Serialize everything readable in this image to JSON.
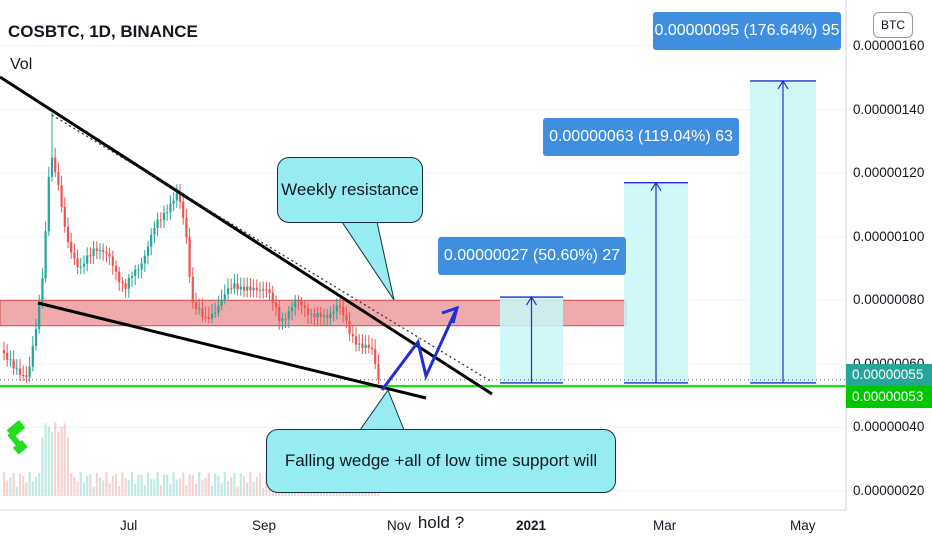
{
  "header": {
    "symbol": "COSBTC, 1D, BINANCE",
    "volume_label": "Vol",
    "currency": "BTC"
  },
  "annotations": {
    "resistance_note": "Weekly resistance",
    "wedge_note": "Falling wedge +all of low time support will hold ?"
  },
  "colors": {
    "support_line": "#22dd22",
    "resistance_zone": "#e57373",
    "target_box": "#c8f7f7",
    "label_bg": "#3f8ee0",
    "up_candle": "#26a69a",
    "down_candle": "#ef5350",
    "arrow": "#1f2fd6"
  },
  "chart_data": {
    "type": "candlestick",
    "title": "COSBTC, 1D, BINANCE",
    "x_ticks": [
      "Jul",
      "Sep",
      "Nov",
      "2021",
      "Mar",
      "May"
    ],
    "y_ticks": [
      "0.00000160",
      "0.00000140",
      "0.00000120",
      "0.00000100",
      "0.00000080",
      "0.00000060",
      "0.00000040",
      "0.00000020"
    ],
    "ylim": [
      1.2e-07,
      1.66e-06
    ],
    "price_tags": [
      {
        "label": "0.00000055",
        "value": 5.5e-07,
        "color": "#26a69a"
      },
      {
        "label": "0.00000053",
        "value": 5.3e-07,
        "color": "#00c800"
      }
    ],
    "resistance_zone": [
      7.2e-07,
      8e-07
    ],
    "support_level": 5.3e-07,
    "projections": [
      {
        "label": "0.00000027 (50.60%) 27",
        "from": 5.4e-07,
        "to": 8.1e-07
      },
      {
        "label": "0.00000063 (119.04%) 63",
        "from": 5.4e-07,
        "to": 1.17e-06
      },
      {
        "label": "0.00000095 (176.64%) 95",
        "from": 5.4e-07,
        "to": 1.49e-06
      }
    ]
  }
}
